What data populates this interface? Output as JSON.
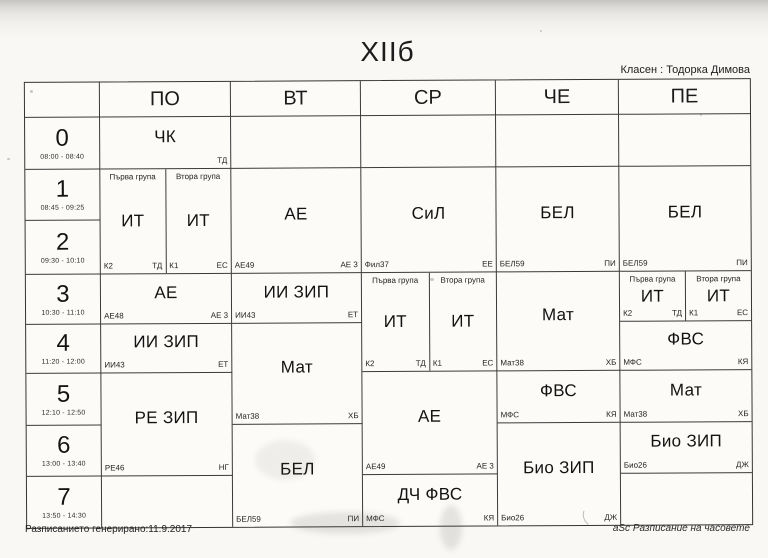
{
  "page": {
    "title": "XIIб",
    "class_teacher_label": "Класен : Тодорка Димова",
    "footer_left": "Разписанието генерирано:11.9.2017",
    "footer_right": "aSc Разписание на часовете"
  },
  "timetable": {
    "days": [
      "ПО",
      "ВТ",
      "СР",
      "ЧЕ",
      "ПЕ"
    ],
    "periods": [
      {
        "num": "0",
        "time": "08:00 - 08:40"
      },
      {
        "num": "1",
        "time": "08:45 - 09:25"
      },
      {
        "num": "2",
        "time": "09:30 - 10:10"
      },
      {
        "num": "3",
        "time": "10:30 - 11:10"
      },
      {
        "num": "4",
        "time": "11:20 - 12:00"
      },
      {
        "num": "5",
        "time": "12:10 - 12:50"
      },
      {
        "num": "6",
        "time": "13:00 - 13:40"
      },
      {
        "num": "7",
        "time": "13:50 - 14:30"
      }
    ],
    "cells": [
      {
        "day": 0,
        "rows": [
          0,
          0
        ],
        "subject": "ЧК",
        "room": "",
        "teacher": "ТД"
      },
      {
        "day": 0,
        "rows": [
          1,
          2
        ],
        "split": [
          {
            "group": "Първа група",
            "subject": "ИТ",
            "room": "К2",
            "teacher": "ТД"
          },
          {
            "group": "Втора група",
            "subject": "ИТ",
            "room": "К1",
            "teacher": "ЕС"
          }
        ]
      },
      {
        "day": 1,
        "rows": [
          1,
          2
        ],
        "subject": "АЕ",
        "room": "АЕ49",
        "teacher": "АЕ 3"
      },
      {
        "day": 2,
        "rows": [
          1,
          2
        ],
        "subject": "СиЛ",
        "room": "Фил37",
        "teacher": "ЕЕ"
      },
      {
        "day": 3,
        "rows": [
          1,
          2
        ],
        "subject": "БЕЛ",
        "room": "БЕЛ59",
        "teacher": "ПИ"
      },
      {
        "day": 4,
        "rows": [
          1,
          2
        ],
        "subject": "БЕЛ",
        "room": "БЕЛ59",
        "teacher": "ПИ"
      },
      {
        "day": 0,
        "rows": [
          3,
          3
        ],
        "subject": "АЕ",
        "room": "АЕ48",
        "teacher": "АЕ 3"
      },
      {
        "day": 1,
        "rows": [
          3,
          3
        ],
        "subject": "ИИ ЗИП",
        "room": "ИИ43",
        "teacher": "ЕТ"
      },
      {
        "day": 2,
        "rows": [
          3,
          4
        ],
        "split": [
          {
            "group": "Първа група",
            "subject": "ИТ",
            "room": "К2",
            "teacher": "ТД"
          },
          {
            "group": "Втора група",
            "subject": "ИТ",
            "room": "К1",
            "teacher": "ЕС"
          }
        ]
      },
      {
        "day": 3,
        "rows": [
          3,
          4
        ],
        "subject": "Мат",
        "room": "Мат38",
        "teacher": "ХБ"
      },
      {
        "day": 4,
        "rows": [
          3,
          3
        ],
        "split": [
          {
            "group": "Първа група",
            "subject": "ИТ",
            "room": "К2",
            "teacher": "ТД"
          },
          {
            "group": "Втора група",
            "subject": "ИТ",
            "room": "К1",
            "teacher": "ЕС"
          }
        ]
      },
      {
        "day": 0,
        "rows": [
          4,
          4
        ],
        "subject": "ИИ ЗИП",
        "room": "ИИ43",
        "teacher": "ЕТ"
      },
      {
        "day": 1,
        "rows": [
          4,
          5
        ],
        "subject": "Мат",
        "room": "Мат38",
        "teacher": "ХБ"
      },
      {
        "day": 4,
        "rows": [
          4,
          4
        ],
        "subject": "ФВС",
        "room": "МФС",
        "teacher": "КЯ"
      },
      {
        "day": 0,
        "rows": [
          5,
          6
        ],
        "subject": "РЕ ЗИП",
        "room": "РЕ46",
        "teacher": "НГ"
      },
      {
        "day": 2,
        "rows": [
          5,
          6
        ],
        "subject": "АЕ",
        "room": "АЕ49",
        "teacher": "АЕ 3"
      },
      {
        "day": 3,
        "rows": [
          5,
          5
        ],
        "subject": "ФВС",
        "room": "МФС",
        "teacher": "КЯ"
      },
      {
        "day": 4,
        "rows": [
          5,
          5
        ],
        "subject": "Мат",
        "room": "Мат38",
        "teacher": "ХБ"
      },
      {
        "day": 1,
        "rows": [
          6,
          7
        ],
        "subject": "БЕЛ",
        "room": "БЕЛ59",
        "teacher": "ПИ"
      },
      {
        "day": 3,
        "rows": [
          6,
          7
        ],
        "subject": "Био ЗИП",
        "room": "Био26",
        "teacher": "ДЖ"
      },
      {
        "day": 4,
        "rows": [
          6,
          6
        ],
        "subject": "Био ЗИП",
        "room": "Био26",
        "teacher": "ДЖ"
      },
      {
        "day": 2,
        "rows": [
          7,
          7
        ],
        "subject": "ДЧ ФВС",
        "room": "МФС",
        "teacher": "КЯ"
      }
    ]
  }
}
